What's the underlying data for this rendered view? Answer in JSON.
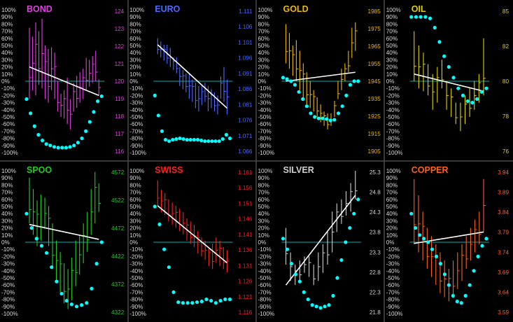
{
  "chart_data": [
    {
      "type": "line",
      "title": "BOND",
      "color": "#e040e0",
      "left_ticks": [
        "100%",
        "90%",
        "80%",
        "70%",
        "60%",
        "50%",
        "40%",
        "30%",
        "20%",
        "10%",
        "0%",
        "-10%",
        "-20%",
        "-30%",
        "-40%",
        "-50%",
        "-60%",
        "-70%",
        "-80%",
        "-90%",
        "-100%"
      ],
      "right_ticks": [
        "124",
        "123",
        "122",
        "121",
        "120",
        "119",
        "118",
        "117",
        "116"
      ],
      "ylim": [
        116,
        124
      ],
      "bars": [
        [
          119.0,
          123.0
        ],
        [
          119.5,
          122.5
        ],
        [
          119.2,
          123.3
        ],
        [
          119.8,
          122.8
        ],
        [
          119.6,
          123.5
        ],
        [
          119.0,
          122.0
        ],
        [
          118.8,
          121.8
        ],
        [
          119.5,
          121.9
        ],
        [
          119.0,
          121.6
        ],
        [
          118.3,
          120.0
        ],
        [
          118.0,
          119.3
        ],
        [
          117.9,
          119.5
        ],
        [
          117.6,
          120.2
        ],
        [
          117.3,
          119.0
        ],
        [
          118.3,
          119.9
        ],
        [
          118.5,
          120.3
        ],
        [
          118.8,
          120.5
        ],
        [
          119.0,
          120.7
        ],
        [
          119.5,
          121.3
        ],
        [
          119.7,
          121.2
        ],
        [
          119.9,
          121.4
        ],
        [
          120.0,
          121.7
        ],
        [
          119.2,
          120.1
        ]
      ],
      "trend": [
        120.8,
        119.2
      ],
      "oscillator": [
        -25,
        -45,
        -63,
        -75,
        -83,
        -88,
        -90,
        -92,
        -93,
        -93,
        -93,
        -92,
        -90,
        -86,
        -80,
        -70,
        -57,
        -43,
        -28,
        -21
      ],
      "oscillator_ylim": [
        -100,
        100
      ]
    },
    {
      "type": "line",
      "title": "EURO",
      "color": "#4a6cff",
      "left_ticks": [
        "100%",
        "90%",
        "80%",
        "70%",
        "60%",
        "50%",
        "40%",
        "30%",
        "20%",
        "10%",
        "0%",
        "-10%",
        "-20%",
        "-30%",
        "-40%",
        "-50%",
        "-60%",
        "-70%",
        "-80%",
        "-90%",
        "-100%"
      ],
      "right_ticks": [
        "1.111",
        "1.106",
        "1.101",
        "1.096",
        "1.091",
        "1.086",
        "1.081",
        "1.076",
        "1.071",
        "1.066"
      ],
      "ylim": [
        1.066,
        1.111
      ],
      "bars": [
        [
          1.097,
          1.102
        ],
        [
          1.096,
          1.101
        ],
        [
          1.095,
          1.1
        ],
        [
          1.094,
          1.1
        ],
        [
          1.093,
          1.099
        ],
        [
          1.092,
          1.096
        ],
        [
          1.091,
          1.096
        ],
        [
          1.087,
          1.093
        ],
        [
          1.086,
          1.092
        ],
        [
          1.085,
          1.091
        ],
        [
          1.083,
          1.091
        ],
        [
          1.082,
          1.089
        ],
        [
          1.08,
          1.088
        ],
        [
          1.079,
          1.087
        ],
        [
          1.081,
          1.087
        ],
        [
          1.082,
          1.088
        ],
        [
          1.079,
          1.087
        ],
        [
          1.08,
          1.086
        ],
        [
          1.079,
          1.085
        ],
        [
          1.078,
          1.084
        ],
        [
          1.083,
          1.09
        ],
        [
          1.082,
          1.093
        ],
        [
          1.078,
          1.089
        ]
      ],
      "trend": [
        1.1,
        1.08
      ],
      "oscillator": [
        -20,
        -48,
        -70,
        -82,
        -84,
        -82,
        -81,
        -80,
        -81,
        -82,
        -82,
        -82,
        -82,
        -83,
        -84,
        -84,
        -84,
        -84,
        -84,
        -81,
        -75,
        -80
      ],
      "oscillator_ylim": [
        -100,
        100
      ]
    },
    {
      "type": "line",
      "title": "GOLD",
      "color": "#f0b800",
      "left_ticks": [
        "100%",
        "90%",
        "80%",
        "70%",
        "60%",
        "50%",
        "40%",
        "30%",
        "20%",
        "10%",
        "0%",
        "-10%",
        "-20%",
        "-30%",
        "-40%",
        "-50%",
        "-60%",
        "-70%",
        "-80%",
        "-90%",
        "-100%"
      ],
      "right_ticks": [
        "1985",
        "1975",
        "1965",
        "1955",
        "1945",
        "1935",
        "1925",
        "1915",
        "1905"
      ],
      "ylim": [
        1905,
        1985
      ],
      "bars": [
        [
          1955,
          1977
        ],
        [
          1952,
          1972
        ],
        [
          1948,
          1965
        ],
        [
          1945,
          1968
        ],
        [
          1940,
          1962
        ],
        [
          1935,
          1955
        ],
        [
          1932,
          1950
        ],
        [
          1930,
          1945
        ],
        [
          1928,
          1940
        ],
        [
          1925,
          1936
        ],
        [
          1922,
          1932
        ],
        [
          1920,
          1928
        ],
        [
          1918,
          1927
        ],
        [
          1920,
          1927
        ],
        [
          1925,
          1934
        ],
        [
          1935,
          1945
        ],
        [
          1940,
          1952
        ],
        [
          1945,
          1955
        ],
        [
          1950,
          1962
        ],
        [
          1958,
          1975
        ],
        [
          1962,
          1978
        ]
      ],
      "trend": [
        1945,
        1950
      ],
      "oscillator": [
        5,
        3,
        0,
        -5,
        -15,
        -25,
        -35,
        -45,
        -50,
        -52,
        -52,
        -53,
        -55,
        -54,
        -45,
        -35,
        -20,
        -5,
        0,
        0
      ],
      "oscillator_ylim": [
        -100,
        100
      ]
    },
    {
      "type": "line",
      "title": "OIL",
      "color": "#e0d000",
      "left_ticks": [
        "100%",
        "90%",
        "80%",
        "70%",
        "60%",
        "50%",
        "40%",
        "30%",
        "20%",
        "10%",
        "0%",
        "-10%",
        "-20%",
        "-30%",
        "-40%",
        "-50%",
        "-60%",
        "-70%",
        "-80%",
        "-90%",
        "-100%"
      ],
      "right_ticks": [
        "85",
        "82",
        "80",
        "78",
        "76"
      ],
      "ylim": [
        76,
        86
      ],
      "bars": [
        [
          81.0,
          84.5
        ],
        [
          80.5,
          83.5
        ],
        [
          80.3,
          83.0
        ],
        [
          80.0,
          82.2
        ],
        [
          79.0,
          81.5
        ],
        [
          79.5,
          82.0
        ],
        [
          80.5,
          82.5
        ],
        [
          79.0,
          81.0
        ],
        [
          78.5,
          80.5
        ],
        [
          78.0,
          79.5
        ],
        [
          77.5,
          79.5
        ],
        [
          78.0,
          80.0
        ],
        [
          78.5,
          80.5
        ],
        [
          79.0,
          81.0
        ],
        [
          79.5,
          81.5
        ],
        [
          80.0,
          84.0
        ]
      ],
      "trend": [
        81.5,
        80.3
      ],
      "oscillator": [
        90,
        90,
        90,
        90,
        88,
        75,
        55,
        35,
        20,
        5,
        -10,
        -20,
        -28,
        -30,
        -25,
        -15,
        -10
      ],
      "oscillator_ylim": [
        -100,
        100
      ]
    },
    {
      "type": "line",
      "title": "SPOO",
      "color": "#20d020",
      "left_ticks": [
        "100%",
        "90%",
        "80%",
        "70%",
        "60%",
        "50%",
        "40%",
        "30%",
        "20%",
        "10%",
        "0%",
        "-10%",
        "-20%",
        "-30%",
        "-40%",
        "-50%",
        "-60%",
        "-70%",
        "-80%",
        "-90%",
        "-100%"
      ],
      "right_ticks": [
        "4572",
        "4522",
        "4472",
        "4422",
        "4372",
        "4322"
      ],
      "ylim": [
        4322,
        4572
      ],
      "bars": [
        [
          4480,
          4560
        ],
        [
          4460,
          4540
        ],
        [
          4440,
          4520
        ],
        [
          4450,
          4530
        ],
        [
          4470,
          4525
        ],
        [
          4440,
          4510
        ],
        [
          4400,
          4480
        ],
        [
          4380,
          4450
        ],
        [
          4360,
          4430
        ],
        [
          4340,
          4410
        ],
        [
          4330,
          4400
        ],
        [
          4345,
          4420
        ],
        [
          4370,
          4450
        ],
        [
          4390,
          4460
        ],
        [
          4410,
          4480
        ],
        [
          4430,
          4500
        ],
        [
          4460,
          4540
        ],
        [
          4480,
          4570
        ],
        [
          4500,
          4550
        ]
      ],
      "trend": [
        4478,
        4452
      ],
      "oscillator": [
        40,
        20,
        5,
        -5,
        -15,
        -35,
        -55,
        -72,
        -82,
        -87,
        -90,
        -88,
        -85,
        -65,
        -30,
        0
      ],
      "oscillator_ylim": [
        -100,
        100
      ]
    },
    {
      "type": "line",
      "title": "SWISS",
      "color": "#ff2020",
      "left_ticks": [
        "100%",
        "90%",
        "80%",
        "70%",
        "60%",
        "50%",
        "40%",
        "30%",
        "20%",
        "10%",
        "0%",
        "-10%",
        "-20%",
        "-30%",
        "-40%",
        "-50%",
        "-60%",
        "-70%",
        "-80%",
        "-90%",
        "-100%"
      ],
      "right_ticks": [
        "1.161",
        "1.156",
        "1.151",
        "1.146",
        "1.141",
        "1.136",
        "1.131",
        "1.126",
        "1.121",
        "1.116"
      ],
      "ylim": [
        1.116,
        1.161
      ],
      "bars": [
        [
          1.15,
          1.158
        ],
        [
          1.148,
          1.155
        ],
        [
          1.147,
          1.154
        ],
        [
          1.145,
          1.152
        ],
        [
          1.144,
          1.151
        ],
        [
          1.143,
          1.15
        ],
        [
          1.142,
          1.149
        ],
        [
          1.141,
          1.148
        ],
        [
          1.139,
          1.146
        ],
        [
          1.138,
          1.145
        ],
        [
          1.137,
          1.144
        ],
        [
          1.135,
          1.142
        ],
        [
          1.134,
          1.14
        ],
        [
          1.133,
          1.139
        ],
        [
          1.131,
          1.137
        ],
        [
          1.13,
          1.138
        ],
        [
          1.132,
          1.14
        ],
        [
          1.131,
          1.139
        ],
        [
          1.13,
          1.137
        ],
        [
          1.129,
          1.136
        ]
      ],
      "trend": [
        1.15,
        1.132
      ],
      "oscillator": [
        50,
        25,
        -10,
        -35,
        -70,
        -84,
        -85,
        -85,
        -85,
        -84,
        -83,
        -80,
        -82,
        -85,
        -82,
        -80,
        -80
      ],
      "oscillator_ylim": [
        -100,
        100
      ]
    },
    {
      "type": "line",
      "title": "SILVER",
      "color": "#d0d0d0",
      "left_ticks": [
        "100%",
        "90%",
        "80%",
        "70%",
        "60%",
        "50%",
        "40%",
        "30%",
        "20%",
        "10%",
        "0%",
        "-10%",
        "-20%",
        "-30%",
        "-40%",
        "-50%",
        "-60%",
        "-70%",
        "-80%",
        "-90%",
        "-100%"
      ],
      "right_ticks": [
        "25.3",
        "24.8",
        "24.3",
        "23.8",
        "23.3",
        "22.8",
        "22.3",
        "21.8"
      ],
      "ylim": [
        21.8,
        25.3
      ],
      "bars": [
        [
          23.0,
          23.9
        ],
        [
          22.6,
          23.3
        ],
        [
          22.5,
          23.0
        ],
        [
          22.6,
          23.1
        ],
        [
          22.8,
          23.2
        ],
        [
          22.7,
          23.2
        ],
        [
          22.5,
          23.0
        ],
        [
          22.6,
          23.3
        ],
        [
          22.8,
          23.5
        ],
        [
          23.0,
          23.8
        ],
        [
          23.3,
          24.3
        ],
        [
          23.8,
          24.5
        ],
        [
          24.0,
          24.6
        ],
        [
          24.2,
          24.8
        ],
        [
          24.3,
          25.0
        ],
        [
          24.6,
          25.3
        ]
      ],
      "trend": [
        22.5,
        24.7
      ],
      "oscillator": [
        5,
        -10,
        -30,
        -45,
        -55,
        -70,
        -80,
        -88,
        -90,
        -92,
        -90,
        -88,
        -75,
        -50,
        -25,
        0,
        20,
        40,
        60
      ],
      "oscillator_ylim": [
        -100,
        100
      ]
    },
    {
      "type": "line",
      "title": "COPPER",
      "color": "#ff6020",
      "left_ticks": [
        "100%",
        "90%",
        "80%",
        "70%",
        "60%",
        "50%",
        "40%",
        "30%",
        "20%",
        "10%",
        "0%",
        "-10%",
        "-20%",
        "-30%",
        "-40%",
        "-50%",
        "-60%",
        "-70%",
        "-80%",
        "-90%",
        "-100%"
      ],
      "right_ticks": [
        "3.94",
        "3.89",
        "3.84",
        "3.79",
        "3.74",
        "3.69",
        "3.64",
        "3.59"
      ],
      "ylim": [
        3.59,
        3.94
      ],
      "bars": [
        [
          3.76,
          3.92
        ],
        [
          3.74,
          3.88
        ],
        [
          3.72,
          3.84
        ],
        [
          3.7,
          3.8
        ],
        [
          3.68,
          3.78
        ],
        [
          3.66,
          3.76
        ],
        [
          3.64,
          3.74
        ],
        [
          3.63,
          3.72
        ],
        [
          3.62,
          3.7
        ],
        [
          3.63,
          3.72
        ],
        [
          3.65,
          3.74
        ],
        [
          3.67,
          3.76
        ],
        [
          3.7,
          3.78
        ],
        [
          3.72,
          3.8
        ],
        [
          3.74,
          3.82
        ],
        [
          3.76,
          3.84
        ],
        [
          3.79,
          3.92
        ]
      ],
      "trend": [
        3.762,
        3.79
      ],
      "oscillator": [
        40,
        20,
        10,
        5,
        0,
        -10,
        -20,
        -30,
        -45,
        -60,
        -75,
        -83,
        -85,
        -75,
        -60,
        -40,
        -20,
        -5,
        5
      ],
      "oscillator_ylim": [
        -100,
        100
      ]
    }
  ],
  "colors": {
    "background": "#000000",
    "divider": "#4a4a4a",
    "axis": "#d8d8d8",
    "zero_line": "#00b0b0",
    "trend": "#ffffff",
    "oscillator": "#00ffff"
  }
}
